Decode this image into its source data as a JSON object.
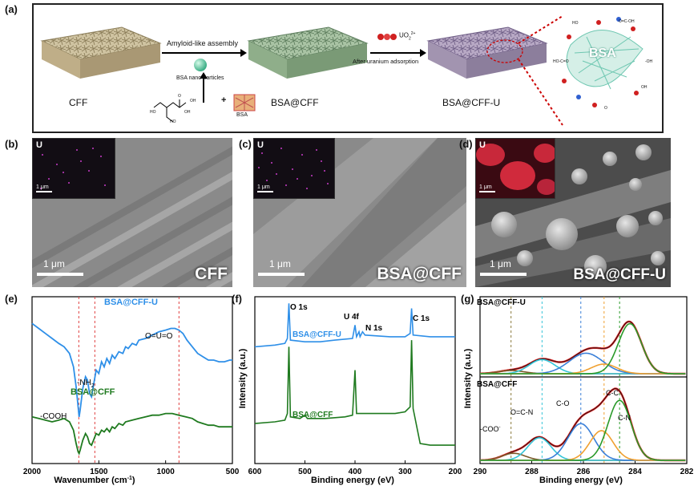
{
  "panel_a": {
    "label": "(a)",
    "materials": [
      "CFF",
      "BSA@CFF",
      "BSA@CFF-U"
    ],
    "arrow1_label": "Amyloid-like assembly",
    "nanoparticle_label": "BSA nano-particles",
    "bsa_small_label": "BSA",
    "plus": "+",
    "uranyl_label": "UO",
    "uranyl_sub": "2",
    "uranyl_sup": "2+",
    "arrow2_label": "After uranium adsorption",
    "bsa_zoom_label": "BSA",
    "molecule_text": [
      "HO",
      "OH",
      "O",
      "HO",
      "OH"
    ],
    "zoom_labels": [
      "HO-C=O",
      "O=C-OH",
      "-OH",
      "HO",
      "OH",
      "O"
    ]
  },
  "panel_b": {
    "label": "(b)",
    "inset_element": "U",
    "inset_scale": "1 μm",
    "scale": "1 μm",
    "name": "CFF"
  },
  "panel_c": {
    "label": "(c)",
    "inset_element": "U",
    "inset_scale": "1 μm",
    "scale": "1 μm",
    "name": "BSA@CFF"
  },
  "panel_d": {
    "label": "(d)",
    "inset_element": "U",
    "inset_scale": "1 μm",
    "scale": "1 μm",
    "name": "BSA@CFF-U"
  },
  "chart_data": [
    {
      "type": "line",
      "panel": "(e)",
      "xlabel": "Wavenumber (cm",
      "xlabel_sup": "-1",
      "xlabel_end": ")",
      "xlim": [
        2000,
        500
      ],
      "x_ticks": [
        2000,
        1500,
        1000,
        500
      ],
      "reference_lines": [
        1650,
        1530,
        900
      ],
      "series": [
        {
          "name": "BSA@CFF-U",
          "color": "#2e8fe8",
          "points": [
            [
              2000,
              0.84
            ],
            [
              1950,
              0.81
            ],
            [
              1900,
              0.78
            ],
            [
              1850,
              0.75
            ],
            [
              1800,
              0.72
            ],
            [
              1760,
              0.7
            ],
            [
              1720,
              0.66
            ],
            [
              1690,
              0.58
            ],
            [
              1670,
              0.46
            ],
            [
              1655,
              0.34
            ],
            [
              1648,
              0.28
            ],
            [
              1640,
              0.32
            ],
            [
              1620,
              0.45
            ],
            [
              1600,
              0.52
            ],
            [
              1585,
              0.5
            ],
            [
              1570,
              0.42
            ],
            [
              1555,
              0.4
            ],
            [
              1540,
              0.47
            ],
            [
              1520,
              0.56
            ],
            [
              1500,
              0.54
            ],
            [
              1480,
              0.61
            ],
            [
              1460,
              0.58
            ],
            [
              1440,
              0.63
            ],
            [
              1420,
              0.6
            ],
            [
              1400,
              0.65
            ],
            [
              1380,
              0.63
            ],
            [
              1350,
              0.67
            ],
            [
              1320,
              0.66
            ],
            [
              1300,
              0.7
            ],
            [
              1280,
              0.69
            ],
            [
              1250,
              0.72
            ],
            [
              1220,
              0.71
            ],
            [
              1200,
              0.74
            ],
            [
              1150,
              0.75
            ],
            [
              1100,
              0.77
            ],
            [
              1050,
              0.79
            ],
            [
              1000,
              0.8
            ],
            [
              960,
              0.81
            ],
            [
              930,
              0.81
            ],
            [
              900,
              0.8
            ],
            [
              870,
              0.78
            ],
            [
              840,
              0.74
            ],
            [
              800,
              0.7
            ],
            [
              760,
              0.66
            ],
            [
              720,
              0.64
            ],
            [
              680,
              0.62
            ],
            [
              640,
              0.62
            ],
            [
              600,
              0.61
            ],
            [
              560,
              0.61
            ],
            [
              520,
              0.62
            ],
            [
              500,
              0.62
            ]
          ]
        },
        {
          "name": "BSA@CFF",
          "color": "#1f7a1f",
          "points": [
            [
              2000,
              0.28
            ],
            [
              1950,
              0.27
            ],
            [
              1900,
              0.26
            ],
            [
              1850,
              0.25
            ],
            [
              1800,
              0.26
            ],
            [
              1760,
              0.27
            ],
            [
              1720,
              0.25
            ],
            [
              1690,
              0.2
            ],
            [
              1670,
              0.12
            ],
            [
              1655,
              0.07
            ],
            [
              1648,
              0.06
            ],
            [
              1640,
              0.08
            ],
            [
              1620,
              0.14
            ],
            [
              1600,
              0.18
            ],
            [
              1585,
              0.16
            ],
            [
              1570,
              0.12
            ],
            [
              1555,
              0.11
            ],
            [
              1540,
              0.14
            ],
            [
              1520,
              0.18
            ],
            [
              1500,
              0.17
            ],
            [
              1480,
              0.2
            ],
            [
              1460,
              0.19
            ],
            [
              1440,
              0.21
            ],
            [
              1420,
              0.19
            ],
            [
              1400,
              0.22
            ],
            [
              1380,
              0.21
            ],
            [
              1350,
              0.24
            ],
            [
              1320,
              0.23
            ],
            [
              1300,
              0.25
            ],
            [
              1250,
              0.26
            ],
            [
              1200,
              0.27
            ],
            [
              1150,
              0.28
            ],
            [
              1100,
              0.29
            ],
            [
              1050,
              0.29
            ],
            [
              1000,
              0.3
            ],
            [
              950,
              0.3
            ],
            [
              900,
              0.29
            ],
            [
              850,
              0.28
            ],
            [
              800,
              0.27
            ],
            [
              760,
              0.25
            ],
            [
              720,
              0.24
            ],
            [
              680,
              0.23
            ],
            [
              640,
              0.23
            ],
            [
              600,
              0.22
            ],
            [
              560,
              0.22
            ],
            [
              520,
              0.22
            ],
            [
              500,
              0.22
            ]
          ]
        }
      ],
      "annotations": [
        "O=U=O",
        "-NH",
        "2",
        "-COOH"
      ]
    },
    {
      "type": "line",
      "panel": "(f)",
      "xlabel": "Binding energy (eV)",
      "ylabel": "Intensity (a.u.)",
      "xlim": [
        600,
        200
      ],
      "x_ticks": [
        600,
        500,
        400,
        300,
        200
      ],
      "series": [
        {
          "name": "BSA@CFF-U",
          "color": "#2e8fe8",
          "points": [
            [
              600,
              0.7
            ],
            [
              560,
              0.71
            ],
            [
              540,
              0.72
            ],
            [
              535,
              0.75
            ],
            [
              532,
              0.96
            ],
            [
              529,
              0.74
            ],
            [
              500,
              0.73
            ],
            [
              470,
              0.73
            ],
            [
              440,
              0.74
            ],
            [
              405,
              0.75
            ],
            [
              400,
              0.83
            ],
            [
              397,
              0.76
            ],
            [
              392,
              0.79
            ],
            [
              390,
              0.76
            ],
            [
              385,
              0.79
            ],
            [
              380,
              0.77
            ],
            [
              330,
              0.76
            ],
            [
              300,
              0.76
            ],
            [
              290,
              0.78
            ],
            [
              287,
              0.93
            ],
            [
              284,
              0.77
            ],
            [
              250,
              0.76
            ],
            [
              200,
              0.76
            ]
          ]
        },
        {
          "name": "BSA@CFF",
          "color": "#1f7a1f",
          "points": [
            [
              600,
              0.24
            ],
            [
              560,
              0.25
            ],
            [
              540,
              0.26
            ],
            [
              535,
              0.3
            ],
            [
              532,
              0.7
            ],
            [
              529,
              0.28
            ],
            [
              510,
              0.27
            ],
            [
              500,
              0.29
            ],
            [
              495,
              0.27
            ],
            [
              460,
              0.27
            ],
            [
              420,
              0.28
            ],
            [
              405,
              0.29
            ],
            [
              400,
              0.56
            ],
            [
              397,
              0.3
            ],
            [
              350,
              0.3
            ],
            [
              320,
              0.3
            ],
            [
              300,
              0.31
            ],
            [
              290,
              0.34
            ],
            [
              287,
              0.74
            ],
            [
              284,
              0.33
            ],
            [
              270,
              0.12
            ],
            [
              250,
              0.11
            ],
            [
              200,
              0.11
            ]
          ]
        }
      ],
      "annotations": [
        "O 1s",
        "U 4f",
        "N 1s",
        "C 1s"
      ]
    },
    {
      "type": "line",
      "panel": "(g)",
      "xlabel": "Binding energy (eV)",
      "ylabel": "Intensity (a.u.)",
      "xlim": [
        290,
        282
      ],
      "x_ticks": [
        290,
        288,
        286,
        284,
        282
      ],
      "reference_lines": [
        288.8,
        287.6,
        286.1,
        285.2,
        284.6
      ],
      "subplots": [
        {
          "name": "BSA@CFF-U",
          "components": [
            {
              "color": "#7a5a2a",
              "center": 288.8,
              "height": 0.05,
              "sigma": 0.5
            },
            {
              "color": "#36c5d8",
              "center": 287.6,
              "height": 0.22,
              "sigma": 0.5
            },
            {
              "color": "#3a7fd8",
              "center": 285.9,
              "height": 0.32,
              "sigma": 0.65
            },
            {
              "color": "#f0a030",
              "center": 285.2,
              "height": 0.15,
              "sigma": 0.5
            },
            {
              "color": "#2a9a2a",
              "center": 284.2,
              "height": 0.78,
              "sigma": 0.45
            }
          ],
          "envelope_color": "#e02020"
        },
        {
          "name": "BSA@CFF",
          "components": [
            {
              "color": "#7a5a2a",
              "center": 288.7,
              "height": 0.1,
              "sigma": 0.45
            },
            {
              "color": "#36c5d8",
              "center": 287.7,
              "height": 0.32,
              "sigma": 0.45
            },
            {
              "color": "#3a7fd8",
              "center": 286.1,
              "height": 0.52,
              "sigma": 0.5
            },
            {
              "color": "#f0a030",
              "center": 285.3,
              "height": 0.42,
              "sigma": 0.45
            },
            {
              "color": "#2a9a2a",
              "center": 284.6,
              "height": 0.85,
              "sigma": 0.45
            }
          ],
          "envelope_color": "#e02020"
        }
      ],
      "annotations": [
        "-COO",
        "-",
        "O=C-N",
        "C-O",
        "C-C",
        "C-N"
      ]
    }
  ]
}
